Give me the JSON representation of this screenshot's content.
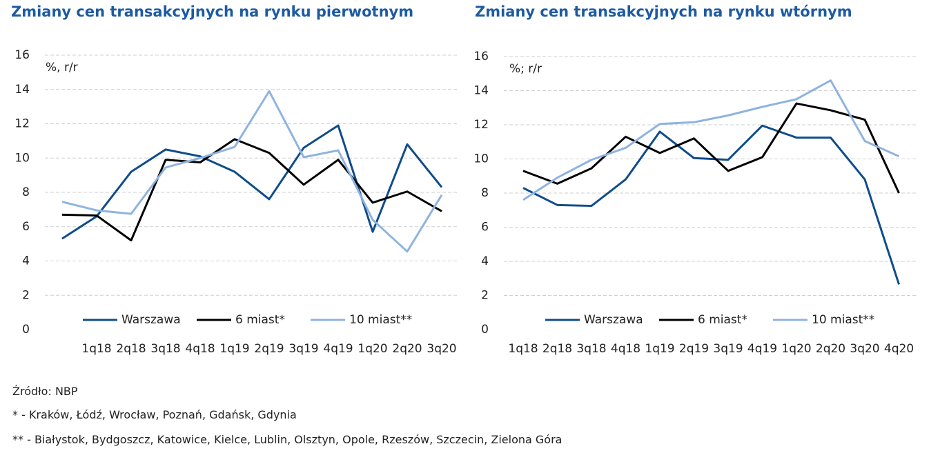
{
  "chart_data": [
    {
      "type": "line",
      "title": "Zmiany cen transakcyjnych na rynku pierwotnym",
      "y_label": "%, r/r",
      "categories": [
        null,
        "1q18",
        "2q18",
        "3q18",
        "4q18",
        "1q19",
        "2q19",
        "3q19",
        "4q19",
        "1q20",
        "2q20",
        "3q20"
      ],
      "ylim": [
        0,
        16
      ],
      "yticks": [
        0,
        2,
        4,
        6,
        8,
        10,
        12,
        14,
        16
      ],
      "grid": true,
      "series": [
        {
          "name": "Warszawa",
          "color": "#0f4c8a",
          "values": [
            5.3,
            6.6,
            9.2,
            10.5,
            10.1,
            9.2,
            7.6,
            10.6,
            11.9,
            5.7,
            10.8,
            8.3
          ]
        },
        {
          "name": "6 miast*",
          "color": "#000000",
          "values": [
            6.7,
            6.65,
            5.2,
            9.9,
            9.75,
            11.1,
            10.3,
            8.45,
            9.9,
            7.4,
            8.05,
            6.9
          ]
        },
        {
          "name": "10 miast**",
          "color": "#8fb3e0",
          "values": [
            7.45,
            6.95,
            6.75,
            9.45,
            10.0,
            10.65,
            13.9,
            10.05,
            10.45,
            6.4,
            4.55,
            7.85
          ]
        }
      ]
    },
    {
      "type": "line",
      "title": "Zmiany cen transakcyjnych na rynku wtórnym",
      "y_label": "%; r/r",
      "categories": [
        "1q18",
        "2q18",
        "3q18",
        "4q18",
        "1q19",
        "2q19",
        "3q19",
        "4q19",
        "1q20",
        "2q20",
        "3q20",
        "4q20"
      ],
      "ylim": [
        0,
        16
      ],
      "yticks": [
        0,
        2,
        4,
        6,
        8,
        10,
        12,
        14,
        16
      ],
      "grid": true,
      "series": [
        {
          "name": "Warszawa",
          "color": "#0f4c8a",
          "values": [
            8.3,
            7.3,
            7.25,
            8.8,
            11.6,
            10.05,
            9.95,
            11.95,
            11.25,
            11.25,
            8.8,
            2.65
          ]
        },
        {
          "name": "6 miast*",
          "color": "#000000",
          "values": [
            9.3,
            8.55,
            9.45,
            11.3,
            10.35,
            11.2,
            9.3,
            10.1,
            13.25,
            12.85,
            12.3,
            8.0
          ]
        },
        {
          "name": "10 miast**",
          "color": "#8fb3e0",
          "values": [
            7.6,
            8.9,
            9.95,
            10.65,
            12.05,
            12.15,
            12.55,
            13.05,
            13.5,
            14.6,
            11.05,
            10.15
          ]
        }
      ]
    }
  ],
  "notes": [
    "Źródło: NBP",
    "* - Kraków, Łódź, Wrocław, Poznań, Gdańsk, Gdynia",
    "** - Białystok, Bydgoszcz, Katowice, Kielce, Lublin, Olsztyn, Opole, Rzeszów, Szczecin, Zielona Góra"
  ]
}
